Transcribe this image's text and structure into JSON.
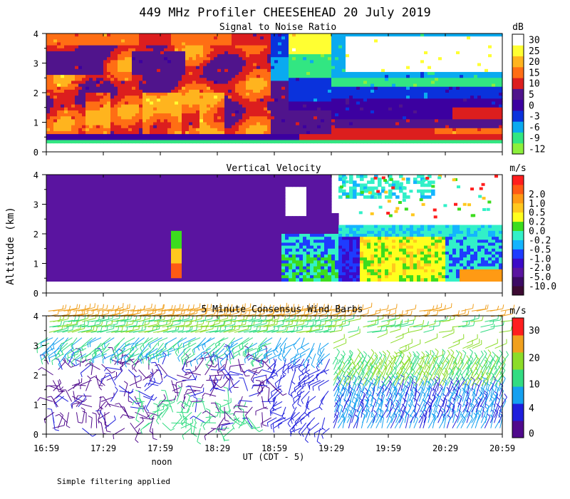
{
  "title": "449 MHz Profiler CHEESEHEAD 20 July 2019",
  "ylabel": "Altitude (km)",
  "xlabel": "UT  (CDT - 5)",
  "noon_label": "noon",
  "footnote": "Simple filtering applied",
  "colors": {
    "snr": [
      "#8cf03c",
      "#32e682",
      "#0aaaf0",
      "#0a32dc",
      "#3c00a0",
      "#50148c",
      "#dc1e1e",
      "#ff6e14",
      "#ffb41e",
      "#ffff32",
      "#ffffff"
    ],
    "velocity": [
      "#3c0a32",
      "#3c0a64",
      "#5a14a0",
      "#3c0ac8",
      "#1e3cff",
      "#14b4ff",
      "#32f0c8",
      "#3cdc1e",
      "#ffff1e",
      "#ffc81e",
      "#ff9a14",
      "#ff5a14",
      "#ff1e1e"
    ],
    "wind": [
      "#500a8c",
      "#1e1edc",
      "#14a0f0",
      "#32dc82",
      "#8cdc28",
      "#f0a01e",
      "#ff1e1e"
    ]
  },
  "chart_data": [
    {
      "type": "heatmap",
      "title": "Signal to Noise Ratio",
      "unit": "dB",
      "x_ticks": [
        "16:59",
        "17:29",
        "17:59",
        "18:29",
        "18:59",
        "19:29",
        "19:59",
        "20:29",
        "20:59"
      ],
      "ylim": [
        0,
        4
      ],
      "y_ticks": [
        "0",
        "1",
        "2",
        "3",
        "4"
      ],
      "colorbar_labels": [
        "-12",
        "-9",
        "-6",
        "-3",
        "0",
        "5",
        "10",
        "15",
        "20",
        "25",
        "30"
      ]
    },
    {
      "type": "heatmap",
      "title": "Vertical Velocity",
      "unit": "m/s",
      "ylim": [
        0,
        4
      ],
      "y_ticks": [
        "0",
        "1",
        "2",
        "3",
        "4"
      ],
      "colorbar_labels": [
        "-10.0",
        "-5.0",
        "-2.0",
        "-1.0",
        "-0.5",
        "-0.2",
        "0.0",
        "0.2",
        "0.5",
        "1.0",
        "2.0"
      ]
    },
    {
      "type": "scatter",
      "title": "5 Minute Consensus Wind Barbs",
      "unit": "m/s",
      "ylim": [
        0,
        4
      ],
      "y_ticks": [
        "0",
        "1",
        "2",
        "3",
        "4"
      ],
      "x_ticks": [
        "16:59",
        "17:29",
        "17:59",
        "18:29",
        "18:59",
        "19:29",
        "19:59",
        "20:29",
        "20:59"
      ],
      "colorbar_labels": [
        "0",
        "4",
        "10",
        "20",
        "30"
      ]
    }
  ]
}
